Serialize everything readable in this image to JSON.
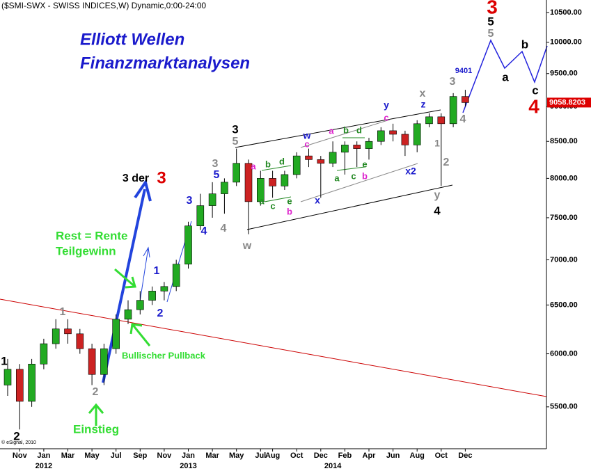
{
  "chart_data": {
    "type": "candlestick",
    "title": "($SMI-SWX - SWISS INDICES,W) Dynamic,0:00-24:00",
    "headline": [
      "Elliott Wellen",
      "Finanzmarktanalysen"
    ],
    "copyright": "© eSignal, 2010",
    "log_scale": true,
    "grid": false,
    "up_color": "#22aa22",
    "down_color": "#cc2222",
    "x": [
      "2011-10",
      "2011-11",
      "2011-12",
      "2012-01",
      "2012-02",
      "2012-03",
      "2012-04",
      "2012-05",
      "2012-06",
      "2012-07",
      "2012-08",
      "2012-09",
      "2012-10",
      "2012-11",
      "2012-12",
      "2013-01",
      "2013-02",
      "2013-03",
      "2013-04",
      "2013-05",
      "2013-06",
      "2013-07",
      "2013-08",
      "2013-09",
      "2013-10",
      "2013-11",
      "2013-12",
      "2014-01",
      "2014-02",
      "2014-03",
      "2014-04",
      "2014-05",
      "2014-06",
      "2014-07",
      "2014-08",
      "2014-09",
      "2014-10",
      "2014-11",
      "2014-12"
    ],
    "open": [
      5700,
      5850,
      5550,
      5900,
      6100,
      6250,
      6200,
      6050,
      5800,
      6050,
      6350,
      6450,
      6550,
      6650,
      6700,
      6950,
      7400,
      7650,
      7800,
      7950,
      8200,
      7700,
      8000,
      7900,
      8050,
      8300,
      8250,
      8200,
      8350,
      8450,
      8400,
      8500,
      8650,
      8600,
      8450,
      8750,
      8850,
      8750,
      9150
    ],
    "high": [
      5950,
      5900,
      5950,
      6150,
      6350,
      6350,
      6250,
      6100,
      6100,
      6400,
      6550,
      6650,
      6700,
      6750,
      7000,
      7450,
      7800,
      7950,
      8000,
      8400,
      8250,
      8100,
      8100,
      8100,
      8350,
      8400,
      8300,
      8500,
      8500,
      8500,
      8550,
      8700,
      8750,
      8650,
      8800,
      8900,
      8900,
      9200,
      9250
    ],
    "low": [
      5600,
      5300,
      5500,
      5850,
      6050,
      6100,
      6000,
      5700,
      5700,
      6000,
      6300,
      6400,
      6500,
      6550,
      6650,
      6900,
      7350,
      7500,
      7550,
      7900,
      7300,
      7650,
      7750,
      7850,
      8000,
      8150,
      7750,
      8150,
      8050,
      8150,
      8250,
      8450,
      8500,
      8300,
      8350,
      8700,
      7900,
      8700,
      9000
    ],
    "close": [
      5850,
      5550,
      5900,
      6100,
      6250,
      6200,
      6050,
      5800,
      6050,
      6350,
      6450,
      6550,
      6650,
      6700,
      6950,
      7400,
      7650,
      7800,
      7950,
      8200,
      7700,
      8000,
      7900,
      8050,
      8300,
      8250,
      8200,
      8350,
      8450,
      8400,
      8500,
      8650,
      8600,
      8450,
      8750,
      8850,
      8750,
      9150,
      9058.8203
    ],
    "last_price": 9058.8203,
    "ylim": [
      5135,
      10718
    ],
    "yticks": [
      {
        "value": 5500,
        "label": "5500.00"
      },
      {
        "value": 6000,
        "label": "6000.00"
      },
      {
        "value": 6500,
        "label": "6500.00"
      },
      {
        "value": 7000,
        "label": "7000.00"
      },
      {
        "value": 7500,
        "label": "7500.00"
      },
      {
        "value": 8000,
        "label": "8000.00"
      },
      {
        "value": 8500,
        "label": "8500.00"
      },
      {
        "value": 9000,
        "label": "9000.00"
      },
      {
        "value": 9500,
        "label": "9500.00"
      },
      {
        "value": 10000,
        "label": "10000.00"
      },
      {
        "value": 10500,
        "label": "10500.00"
      }
    ],
    "xticks": [
      {
        "value": "2011-11",
        "label": "Nov"
      },
      {
        "value": "2012-01",
        "label": "Jan"
      },
      {
        "value": "2012-03",
        "label": "Mar"
      },
      {
        "value": "2012-05",
        "label": "May"
      },
      {
        "value": "2012-07",
        "label": "Jul"
      },
      {
        "value": "2012-09",
        "label": "Sep"
      },
      {
        "value": "2012-11",
        "label": "Nov"
      },
      {
        "value": "2013-01",
        "label": "Jan"
      },
      {
        "value": "2013-03",
        "label": "Mar"
      },
      {
        "value": "2013-05",
        "label": "May"
      },
      {
        "value": "2013-07",
        "label": "Jul"
      },
      {
        "value": "2013-08",
        "label": "Aug"
      },
      {
        "value": "2013-10",
        "label": "Oct"
      },
      {
        "value": "2013-12",
        "label": "Dec"
      },
      {
        "value": "2014-02",
        "label": "Feb"
      },
      {
        "value": "2014-04",
        "label": "Apr"
      },
      {
        "value": "2014-06",
        "label": "Jun"
      },
      {
        "value": "2014-08",
        "label": "Aug"
      },
      {
        "value": "2014-10",
        "label": "Oct"
      },
      {
        "value": "2014-12",
        "label": "Dec"
      }
    ],
    "year_ticks": [
      {
        "value": "2012-01",
        "label": "2012"
      },
      {
        "value": "2013-01",
        "label": "2013"
      },
      {
        "value": "2014-01",
        "label": "2014"
      }
    ],
    "annotations": [
      "1",
      "2",
      "3",
      "4",
      "5",
      "3 der",
      "3",
      "3",
      "4",
      "1",
      "2",
      "3",
      "4",
      "5",
      "w",
      "x",
      "3",
      "1",
      "2",
      "4",
      "y",
      "5",
      "1",
      "2",
      "3",
      "4",
      "5",
      "w",
      "x",
      "y",
      "z",
      "x2",
      "a",
      "b",
      "c",
      "a",
      "c",
      "a",
      "c",
      "b",
      "b",
      "b",
      "d",
      "a",
      "c",
      "e",
      "b",
      "d",
      "a",
      "c",
      "e",
      "9401",
      "Rest = Rente",
      "Teilgewinn",
      "Bullischer Pullback",
      "Einstieg"
    ]
  }
}
